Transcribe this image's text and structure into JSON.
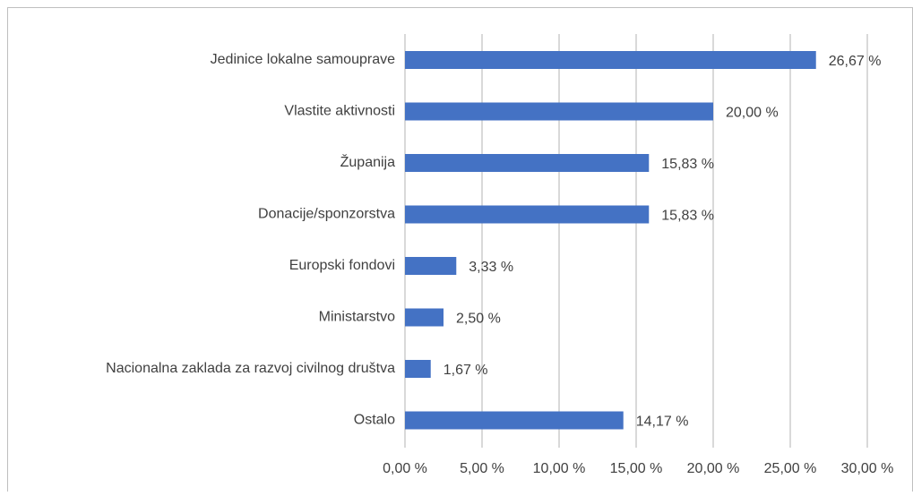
{
  "chart_data": {
    "type": "bar",
    "orientation": "horizontal",
    "categories": [
      "Jedinice lokalne samouprave",
      "Vlastite aktivnosti",
      "Županija",
      "Donacije/sponzorstva",
      "Europski fondovi",
      "Ministarstvo",
      "Nacionalna zaklada za razvoj civilnog društva",
      "Ostalo"
    ],
    "values": [
      26.67,
      20.0,
      15.83,
      15.83,
      3.33,
      2.5,
      1.67,
      14.17
    ],
    "value_labels": [
      "26,67 %",
      "20,00 %",
      "15,83 %",
      "15,83 %",
      "3,33 %",
      "2,50 %",
      "1,67 %",
      "14,17 %"
    ],
    "color": "#4472c4",
    "xlim": [
      0,
      30
    ],
    "xticks": [
      {
        "value": 0,
        "label": "0,00 %"
      },
      {
        "value": 5,
        "label": "5,00 %"
      },
      {
        "value": 10,
        "label": "10,00 %"
      },
      {
        "value": 15,
        "label": "15,00 %"
      },
      {
        "value": 20,
        "label": "20,00 %"
      },
      {
        "value": 25,
        "label": "25,00 %"
      },
      {
        "value": 30,
        "label": "30,00 %"
      }
    ],
    "grid": true
  }
}
